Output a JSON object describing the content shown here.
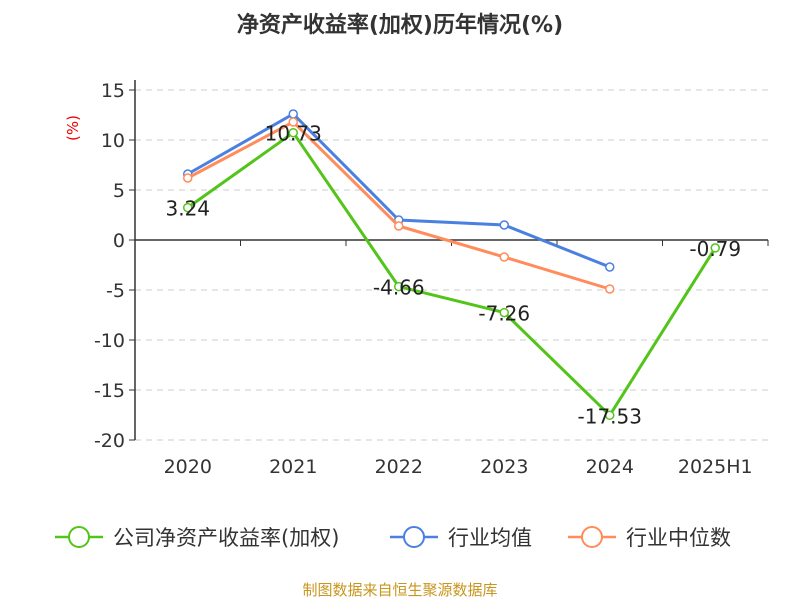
{
  "chart_data": {
    "type": "line",
    "title": "净资产收益率(加权)历年情况(%)",
    "ylabel": "(%)",
    "categories": [
      "2020",
      "2021",
      "2022",
      "2023",
      "2024",
      "2025H1"
    ],
    "ylim": [
      -20,
      15
    ],
    "yticks": [
      15,
      10,
      5,
      0,
      -5,
      -10,
      -15,
      -20
    ],
    "grid": true,
    "legend_position": "bottom",
    "series": [
      {
        "name": "公司净资产收益率(加权)",
        "color": "#52c41a",
        "values": [
          3.24,
          10.73,
          -4.66,
          -7.26,
          -17.53,
          -0.79
        ],
        "labels": [
          "3.24",
          "10.73",
          "-4.66",
          "-7.26",
          "-17.53",
          "-0.79"
        ]
      },
      {
        "name": "行业均值",
        "color": "#4a80e0",
        "values": [
          6.6,
          12.6,
          2.0,
          1.5,
          -2.7,
          null
        ]
      },
      {
        "name": "行业中位数",
        "color": "#ff8c5a",
        "values": [
          6.2,
          11.8,
          1.4,
          -1.7,
          -4.9,
          null
        ]
      }
    ]
  },
  "footer": "制图数据来自恒生聚源数据库"
}
